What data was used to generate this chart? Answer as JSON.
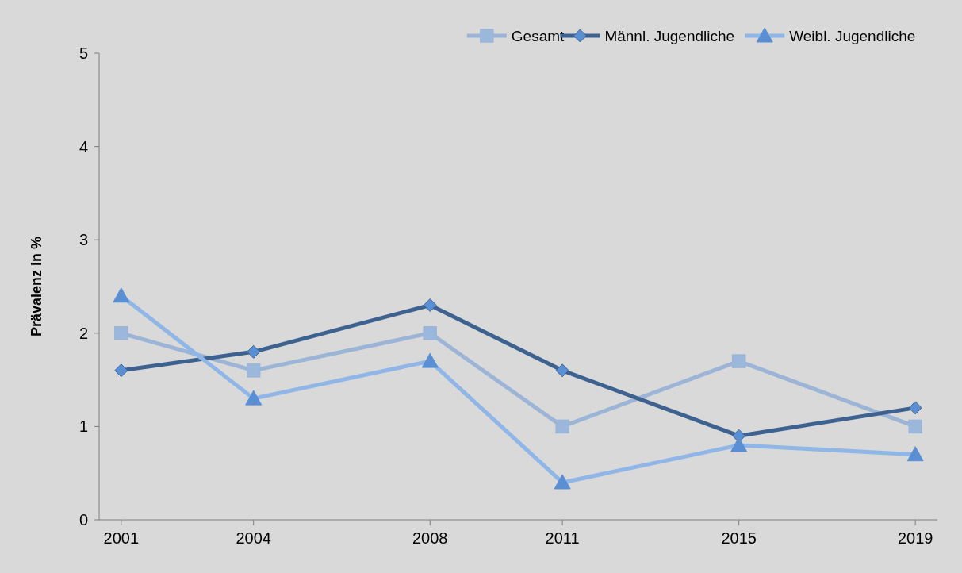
{
  "chart_data": {
    "type": "line",
    "ylabel": "Prävalenz in %",
    "x": [
      2001,
      2004,
      2008,
      2011,
      2015,
      2019
    ],
    "xlim": [
      2000.5,
      2019.5
    ],
    "xticks": [
      2001,
      2004,
      2008,
      2011,
      2015,
      2019
    ],
    "ylim": [
      0,
      5
    ],
    "yticks": [
      0,
      1,
      2,
      3,
      4,
      5
    ],
    "grid": false,
    "legend": "top right",
    "series": [
      {
        "name": "Gesamt",
        "color": "#9cb5d6",
        "marker": "square",
        "values": [
          2,
          1.6,
          2,
          1,
          1.7,
          1
        ]
      },
      {
        "name": "Männl. Jugendliche",
        "color": "#3d6290",
        "marker": "diamond",
        "values": [
          1.6,
          1.8,
          2.3,
          1.6,
          0.9,
          1.2
        ]
      },
      {
        "name": "Weibl. Jugendliche",
        "color": "#8fb6e6",
        "marker": "triangle",
        "values": [
          2.4,
          1.3,
          1.7,
          0.4,
          0.8,
          0.7
        ]
      }
    ]
  }
}
